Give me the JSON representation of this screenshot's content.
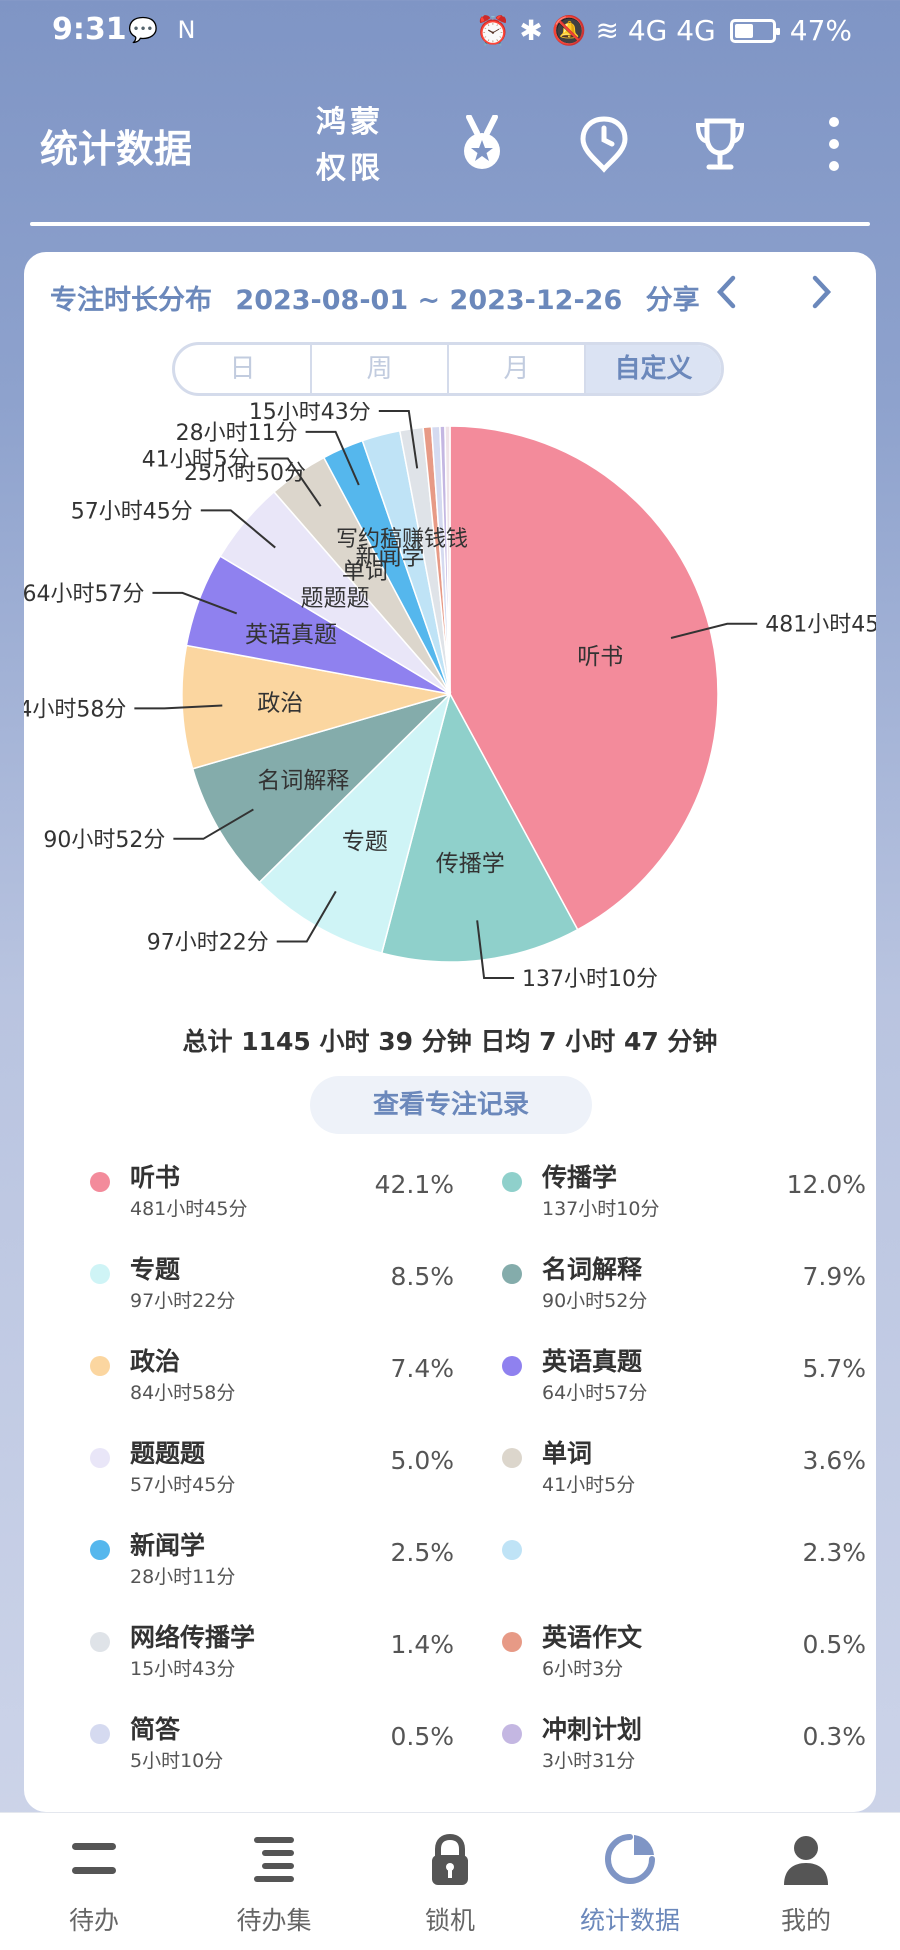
{
  "status_bar": {
    "time": "9:31",
    "left_icons": "💬 N",
    "right_icons": "⏰ ✱ 🔕 ≋ 4G 4G",
    "battery": "47%"
  },
  "header": {
    "title": "统计数据",
    "hm_line1": "鸿蒙",
    "hm_line2": "权限"
  },
  "card": {
    "title": "专注时长分布",
    "date_range": "2023-08-01 ~ 2023-12-26",
    "share_label": "分享",
    "tabs": [
      "日",
      "周",
      "月",
      "自定义"
    ],
    "selected_tab": "自定义",
    "total_text": "总计 1145 小时 39 分钟 日均 7 小时 47 分钟",
    "record_button": "查看专注记录"
  },
  "chart_data": {
    "type": "pie",
    "slices": [
      {
        "name": "听书",
        "duration": "481小时45分",
        "value": 42.1,
        "color": "#f38b9b",
        "show_name": true
      },
      {
        "name": "传播学",
        "duration": "137小时10分",
        "value": 12.0,
        "color": "#8fd0cb",
        "show_name": true
      },
      {
        "name": "专题",
        "duration": "97小时22分",
        "value": 8.5,
        "color": "#cff4f6",
        "show_name": true
      },
      {
        "name": "名词解释",
        "duration": "90小时52分",
        "value": 7.9,
        "color": "#84acab",
        "show_name": true
      },
      {
        "name": "政治",
        "duration": "84小时58分",
        "value": 7.4,
        "color": "#fbd6a0",
        "show_name": true
      },
      {
        "name": "英语真题",
        "duration": "64小时57分",
        "value": 5.7,
        "color": "#8f81ef",
        "show_name": true
      },
      {
        "name": "题题题",
        "duration": "57小时45分",
        "value": 5.0,
        "color": "#e9e6f8",
        "show_name": true
      },
      {
        "name": "单词",
        "duration": "41小时5分",
        "value": 3.6,
        "color": "#dcd6cc",
        "show_name": true
      },
      {
        "name": "新闻学",
        "duration": "28小时11分",
        "value": 2.5,
        "color": "#55b7ed",
        "show_name": true
      },
      {
        "name": "",
        "duration": "",
        "value": 2.3,
        "color": "#bfe3f6",
        "show_name": false
      },
      {
        "name": "网络传播学",
        "duration": "15小时43分",
        "value": 1.4,
        "color": "#dfe3e8",
        "show_name": false
      },
      {
        "name": "英语作文",
        "duration": "6小时3分",
        "value": 0.5,
        "color": "#e79a86",
        "show_name": false
      },
      {
        "name": "简答",
        "duration": "5小时10分",
        "value": 0.5,
        "color": "#d5daf0",
        "show_name": false
      },
      {
        "name": "冲刺计划",
        "duration": "3小时31分",
        "value": 0.3,
        "color": "#c4b7e2",
        "show_name": false
      },
      {
        "name": "",
        "duration": "",
        "value": 0.3,
        "color": "#efe3e8",
        "show_name": false
      }
    ],
    "overlap_labels": {
      "outer": "25小时50分",
      "inner": "写约稿赚钱钱"
    }
  },
  "legend": [
    {
      "name": "听书",
      "duration": "481小时45分",
      "percent": "42.1%",
      "color": "#f38b9b"
    },
    {
      "name": "传播学",
      "duration": "137小时10分",
      "percent": "12.0%",
      "color": "#8fd0cb"
    },
    {
      "name": "专题",
      "duration": "97小时22分",
      "percent": "8.5%",
      "color": "#cff4f6"
    },
    {
      "name": "名词解释",
      "duration": "90小时52分",
      "percent": "7.9%",
      "color": "#84acab"
    },
    {
      "name": "政治",
      "duration": "84小时58分",
      "percent": "7.4%",
      "color": "#fbd6a0"
    },
    {
      "name": "英语真题",
      "duration": "64小时57分",
      "percent": "5.7%",
      "color": "#8f81ef"
    },
    {
      "name": "题题题",
      "duration": "57小时45分",
      "percent": "5.0%",
      "color": "#e9e6f8"
    },
    {
      "name": "单词",
      "duration": "41小时5分",
      "percent": "3.6%",
      "color": "#dcd6cc"
    },
    {
      "name": "新闻学",
      "duration": "28小时11分",
      "percent": "2.5%",
      "color": "#55b7ed"
    },
    {
      "name": "",
      "duration": "",
      "percent": "2.3%",
      "color": "#bfe3f6"
    },
    {
      "name": "网络传播学",
      "duration": "15小时43分",
      "percent": "1.4%",
      "color": "#dfe3e8"
    },
    {
      "name": "英语作文",
      "duration": "6小时3分",
      "percent": "0.5%",
      "color": "#e79a86"
    },
    {
      "name": "简答",
      "duration": "5小时10分",
      "percent": "0.5%",
      "color": "#d5daf0"
    },
    {
      "name": "冲刺计划",
      "duration": "3小时31分",
      "percent": "0.3%",
      "color": "#c4b7e2"
    }
  ],
  "bottom_nav": [
    {
      "label": "待办",
      "icon": "todo-icon"
    },
    {
      "label": "待办集",
      "icon": "todo-set-icon"
    },
    {
      "label": "锁机",
      "icon": "lock-icon"
    },
    {
      "label": "统计数据",
      "icon": "pie-chart-icon",
      "active": true
    },
    {
      "label": "我的",
      "icon": "person-icon"
    }
  ],
  "colors": {
    "accent": "#6b88bb",
    "header_bg": "#7f95c5"
  }
}
